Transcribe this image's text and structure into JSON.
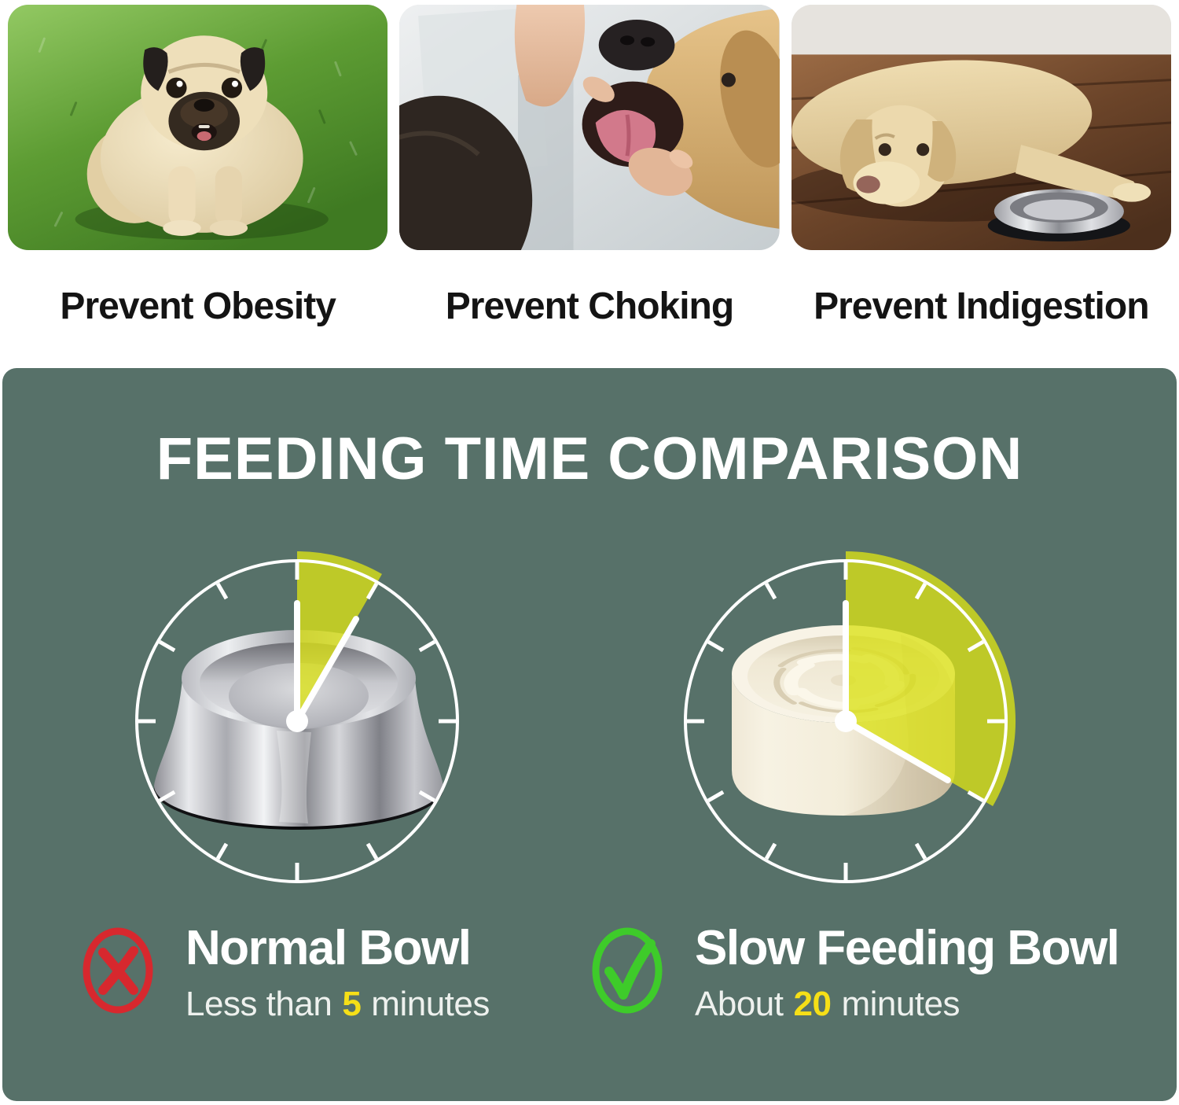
{
  "benefits": {
    "items": [
      {
        "caption": "Prevent Obesity",
        "illustration": "obese-pug-on-grass"
      },
      {
        "caption": "Prevent Choking",
        "illustration": "hand-checking-dog-mouth"
      },
      {
        "caption": "Prevent Indigestion",
        "illustration": "tired-dog-beside-steel-bowl"
      }
    ]
  },
  "comparison": {
    "title": "FEEDING TIME COMPARISON",
    "clock_ticks": 12,
    "left": {
      "bowl_illustration": "stainless-steel-normal-bowl",
      "minutes": 5,
      "label": "Normal Bowl",
      "time_prefix": "Less than",
      "time_value": "5",
      "time_suffix": "minutes",
      "verdict": "cross"
    },
    "right": {
      "bowl_illustration": "slow-feeding-maze-bowl",
      "minutes": 20,
      "label": "Slow Feeding Bowl",
      "time_prefix": "About",
      "time_value": "20",
      "time_suffix": "minutes",
      "verdict": "check"
    }
  },
  "colors": {
    "panel_green": "#577169",
    "wedge_yellow": "#dbe216",
    "wedge_opacity": "0.78",
    "highlight_yellow": "#f6df17",
    "cross_red": "#d7282e",
    "check_green": "#3ecb2a",
    "title_white": "#ffffff"
  }
}
